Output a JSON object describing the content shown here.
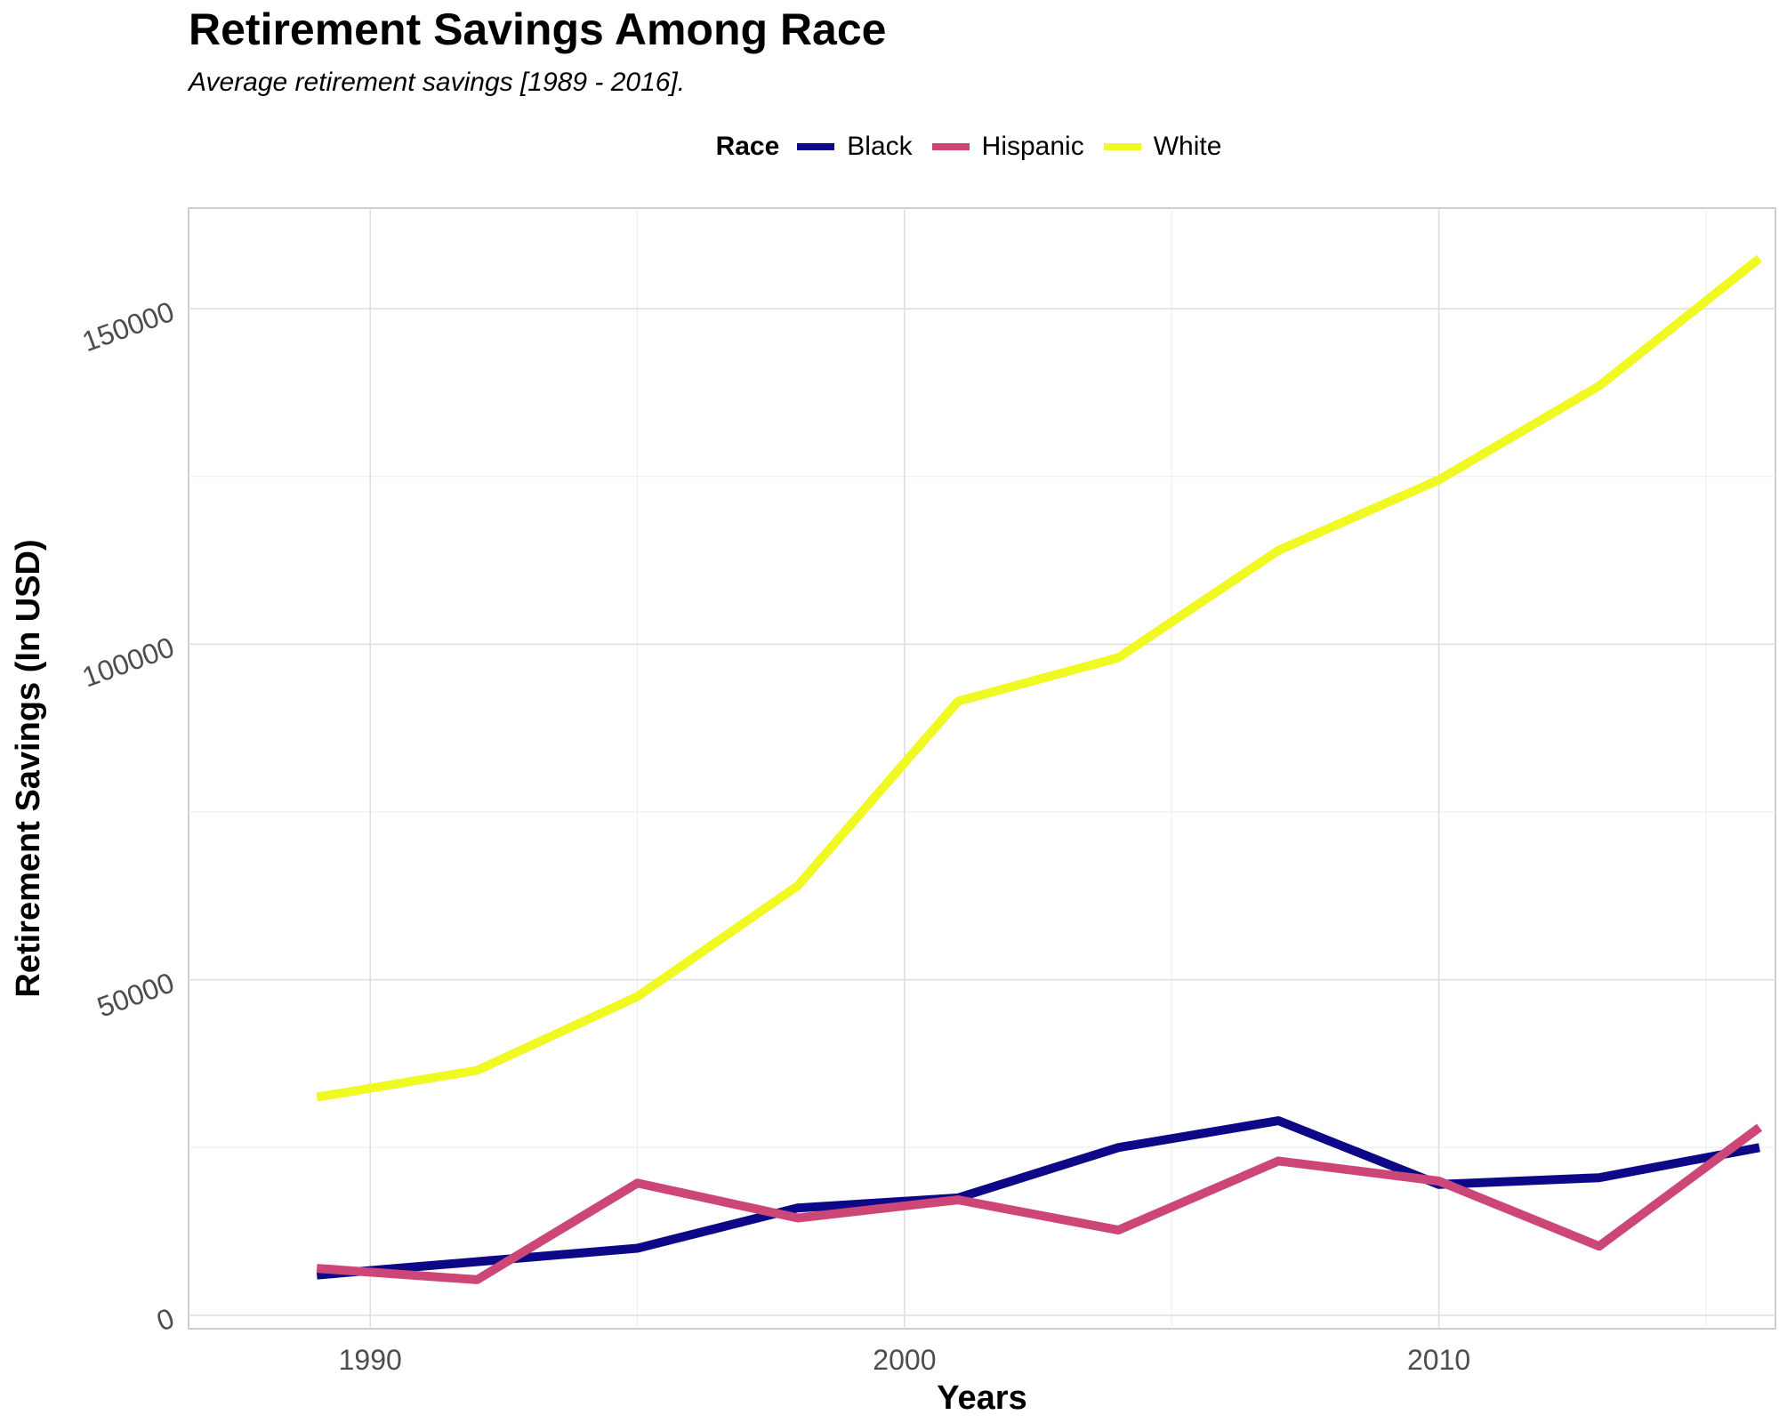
{
  "chart_data": {
    "type": "line",
    "title": "Retirement Savings Among Race",
    "subtitle": "Average retirement savings [1989 - 2016].",
    "xlabel": "Years",
    "ylabel": "Retirement Savings (In USD)",
    "xlim": [
      1986.6,
      2016.3
    ],
    "ylim": [
      -2000,
      165000
    ],
    "x_ticks": [
      1990,
      2000,
      2010
    ],
    "y_ticks": [
      0,
      50000,
      100000,
      150000
    ],
    "grid": true,
    "legend": {
      "title": "Race",
      "position": "top"
    },
    "x": [
      1989,
      1992,
      1995,
      1998,
      2001,
      2004,
      2007,
      2010,
      2013,
      2016
    ],
    "series": [
      {
        "name": "Black",
        "color": "#0d0887",
        "values": [
          6000,
          8000,
          10000,
          16000,
          17500,
          25000,
          29000,
          19500,
          20500,
          25000
        ]
      },
      {
        "name": "Hispanic",
        "color": "#cc4778",
        "values": [
          7000,
          5300,
          19700,
          14500,
          17200,
          12700,
          23000,
          20000,
          10300,
          28000
        ]
      },
      {
        "name": "White",
        "color": "#f0f921",
        "values": [
          32500,
          36500,
          47500,
          64000,
          91500,
          98000,
          114000,
          124500,
          138500,
          157500
        ]
      }
    ]
  }
}
